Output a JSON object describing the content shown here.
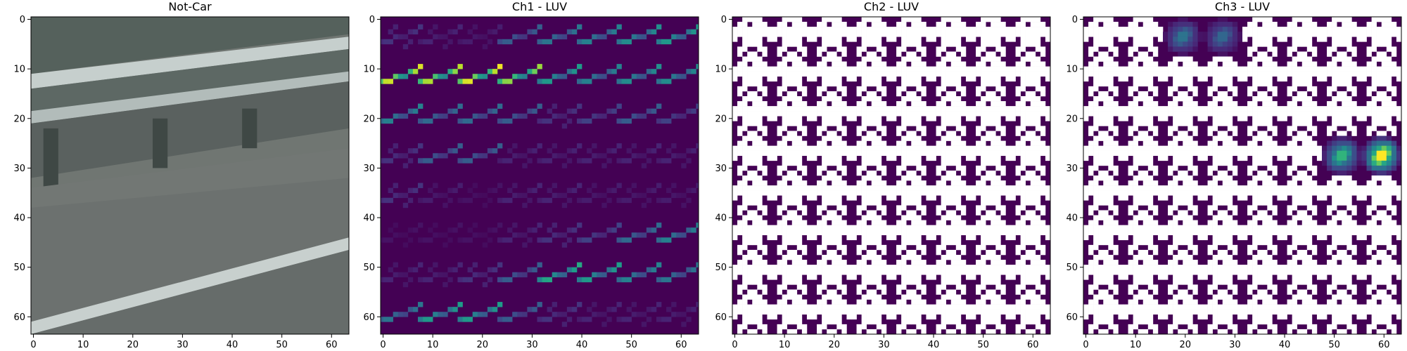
{
  "chart_data": [
    {
      "type": "heatmap",
      "title": "Not-Car",
      "xlabel": "",
      "ylabel": "",
      "xlim": [
        -0.5,
        63.5
      ],
      "ylim": [
        63.5,
        -0.5
      ],
      "x_ticks": [
        0,
        10,
        20,
        30,
        40,
        50,
        60
      ],
      "y_ticks": [
        0,
        10,
        20,
        30,
        40,
        50,
        60
      ],
      "image_kind": "photo",
      "description_colors": {
        "background": "#6e7470",
        "rail": "#c9d2d0",
        "dark": "#3e4744"
      }
    },
    {
      "type": "heatmap",
      "title": "Ch1 - LUV",
      "xlabel": "",
      "ylabel": "",
      "xlim": [
        -0.5,
        63.5
      ],
      "ylim": [
        63.5,
        -0.5
      ],
      "x_ticks": [
        0,
        10,
        20,
        30,
        40,
        50,
        60
      ],
      "y_ticks": [
        0,
        10,
        20,
        30,
        40,
        50,
        60
      ],
      "image_kind": "hog",
      "colormap": "viridis",
      "cells": 8,
      "cell_intensity": [
        [
          0.15,
          0.1,
          0.08,
          0.3,
          0.4,
          0.45,
          0.5,
          0.55
        ],
        [
          0.95,
          0.9,
          0.98,
          0.85,
          0.55,
          0.45,
          0.5,
          0.5
        ],
        [
          0.45,
          0.35,
          0.35,
          0.3,
          0.15,
          0.2,
          0.3,
          0.2
        ],
        [
          0.15,
          0.3,
          0.3,
          0.1,
          0.1,
          0.1,
          0.1,
          0.1
        ],
        [
          0.15,
          0.08,
          0.05,
          0.1,
          0.1,
          0.08,
          0.08,
          0.08
        ],
        [
          0.05,
          0.05,
          0.05,
          0.1,
          0.15,
          0.2,
          0.35,
          0.45
        ],
        [
          0.1,
          0.1,
          0.15,
          0.3,
          0.6,
          0.55,
          0.45,
          0.4
        ],
        [
          0.4,
          0.55,
          0.55,
          0.3,
          0.15,
          0.1,
          0.1,
          0.1
        ]
      ]
    },
    {
      "type": "heatmap",
      "title": "Ch2 - LUV",
      "xlabel": "",
      "ylabel": "",
      "xlim": [
        -0.5,
        63.5
      ],
      "ylim": [
        63.5,
        -0.5
      ],
      "x_ticks": [
        0,
        10,
        20,
        30,
        40,
        50,
        60
      ],
      "y_ticks": [
        0,
        10,
        20,
        30,
        40,
        50,
        60
      ],
      "image_kind": "hog-saturated",
      "colormap": "viridis",
      "cells": 8,
      "hot_cells": []
    },
    {
      "type": "heatmap",
      "title": "Ch3 - LUV",
      "xlabel": "",
      "ylabel": "",
      "xlim": [
        -0.5,
        63.5
      ],
      "ylim": [
        63.5,
        -0.5
      ],
      "x_ticks": [
        0,
        10,
        20,
        30,
        40,
        50,
        60
      ],
      "y_ticks": [
        0,
        10,
        20,
        30,
        40,
        50,
        60
      ],
      "image_kind": "hog-saturated",
      "colormap": "viridis",
      "cells": 8,
      "hot_cells": [
        {
          "row": 0,
          "col": 2,
          "intensity": 0.35
        },
        {
          "row": 0,
          "col": 3,
          "intensity": 0.3
        },
        {
          "row": 3,
          "col": 6,
          "intensity": 0.6
        },
        {
          "row": 3,
          "col": 7,
          "intensity": 0.95
        }
      ]
    }
  ],
  "colors": {
    "viridis_low": "#440154",
    "white": "#ffffff",
    "frame": "#000000"
  }
}
